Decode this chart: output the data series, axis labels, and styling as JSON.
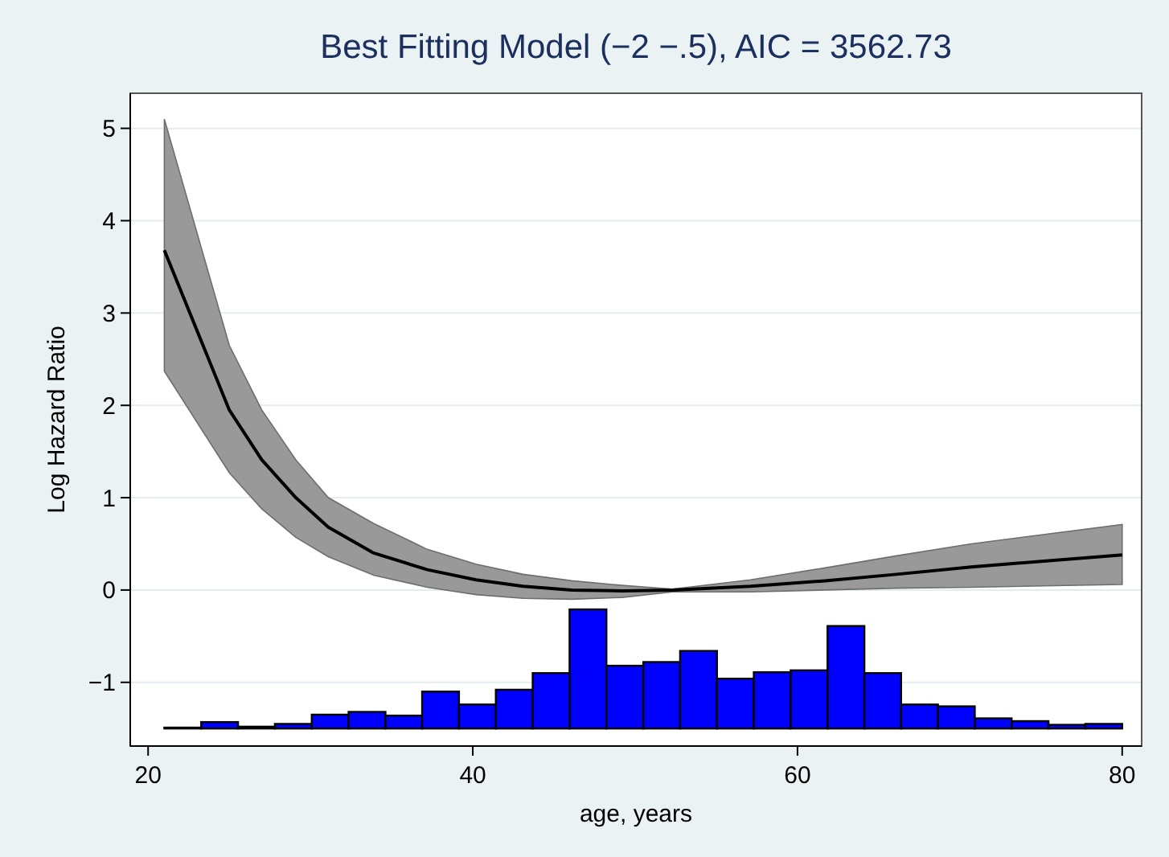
{
  "chart_data": {
    "type": "line",
    "title": "Best Fitting Model (−2 −.5), AIC = 3562.73",
    "xlabel": "age, years",
    "ylabel": "Log Hazard Ratio",
    "xlim": [
      18.9,
      81.2
    ],
    "xticks": [
      20,
      40,
      60,
      80
    ],
    "ylim": [
      -1.69,
      5.38
    ],
    "yticks": [
      {
        "value": -1,
        "label": "−1"
      },
      0,
      1,
      2,
      3,
      4,
      5
    ],
    "grid": "y",
    "marker": "none",
    "line_style": "solid",
    "series": [
      {
        "color": "#000000",
        "x": [
          21,
          25,
          27,
          29.1,
          31.1,
          33.9,
          37.2,
          40.2,
          43.1,
          46.1,
          49.2,
          52.3,
          57.1,
          61.7,
          66.1,
          70.7,
          80
        ],
        "values": [
          3.68,
          1.95,
          1.41,
          1.0,
          0.68,
          0.4,
          0.22,
          0.11,
          0.04,
          0.0,
          -0.01,
          0,
          0.04,
          0.1,
          0.17,
          0.25,
          0.38
        ],
        "lower": [
          2.37,
          1.27,
          0.88,
          0.57,
          0.36,
          0.16,
          0.03,
          -0.05,
          -0.09,
          -0.1,
          -0.08,
          -0.02,
          -0.02,
          0.0,
          0.02,
          0.03,
          0.06
        ],
        "upper": [
          5.1,
          2.65,
          1.95,
          1.41,
          1.0,
          0.72,
          0.44,
          0.28,
          0.17,
          0.1,
          0.05,
          0.01,
          0.11,
          0.24,
          0.37,
          0.5,
          0.71
        ]
      },
      {
        "type": "histogram",
        "color": "#0000ff",
        "bins": [
          21,
          23.27,
          25.54,
          27.81,
          30.08,
          32.35,
          34.62,
          36.88,
          39.15,
          41.42,
          43.69,
          45.96,
          48.23,
          50.5,
          52.77,
          55.04,
          57.31,
          59.58,
          61.85,
          64.12,
          66.38,
          68.65,
          70.92,
          73.19,
          75.46,
          77.73,
          80
        ],
        "values": [
          0.01,
          0.07,
          0.02,
          0.05,
          0.15,
          0.18,
          0.14,
          0.4,
          0.26,
          0.42,
          0.6,
          1.29,
          0.68,
          0.72,
          0.84,
          0.54,
          0.61,
          0.63,
          1.11,
          0.6,
          0.26,
          0.24,
          0.11,
          0.08,
          0.04,
          0.05
        ],
        "base": [
          -1.5,
          -1.5,
          -1.5,
          -1.5,
          -1.5,
          -1.5,
          -1.5,
          -1.5,
          -1.5,
          -1.5,
          -1.5,
          -1.5,
          -1.5,
          -1.5,
          -1.5,
          -1.5,
          -1.5,
          -1.5,
          -1.5,
          -1.5,
          -1.5,
          -1.5,
          -1.5,
          -1.5,
          -1.5,
          -1.5
        ]
      }
    ]
  }
}
